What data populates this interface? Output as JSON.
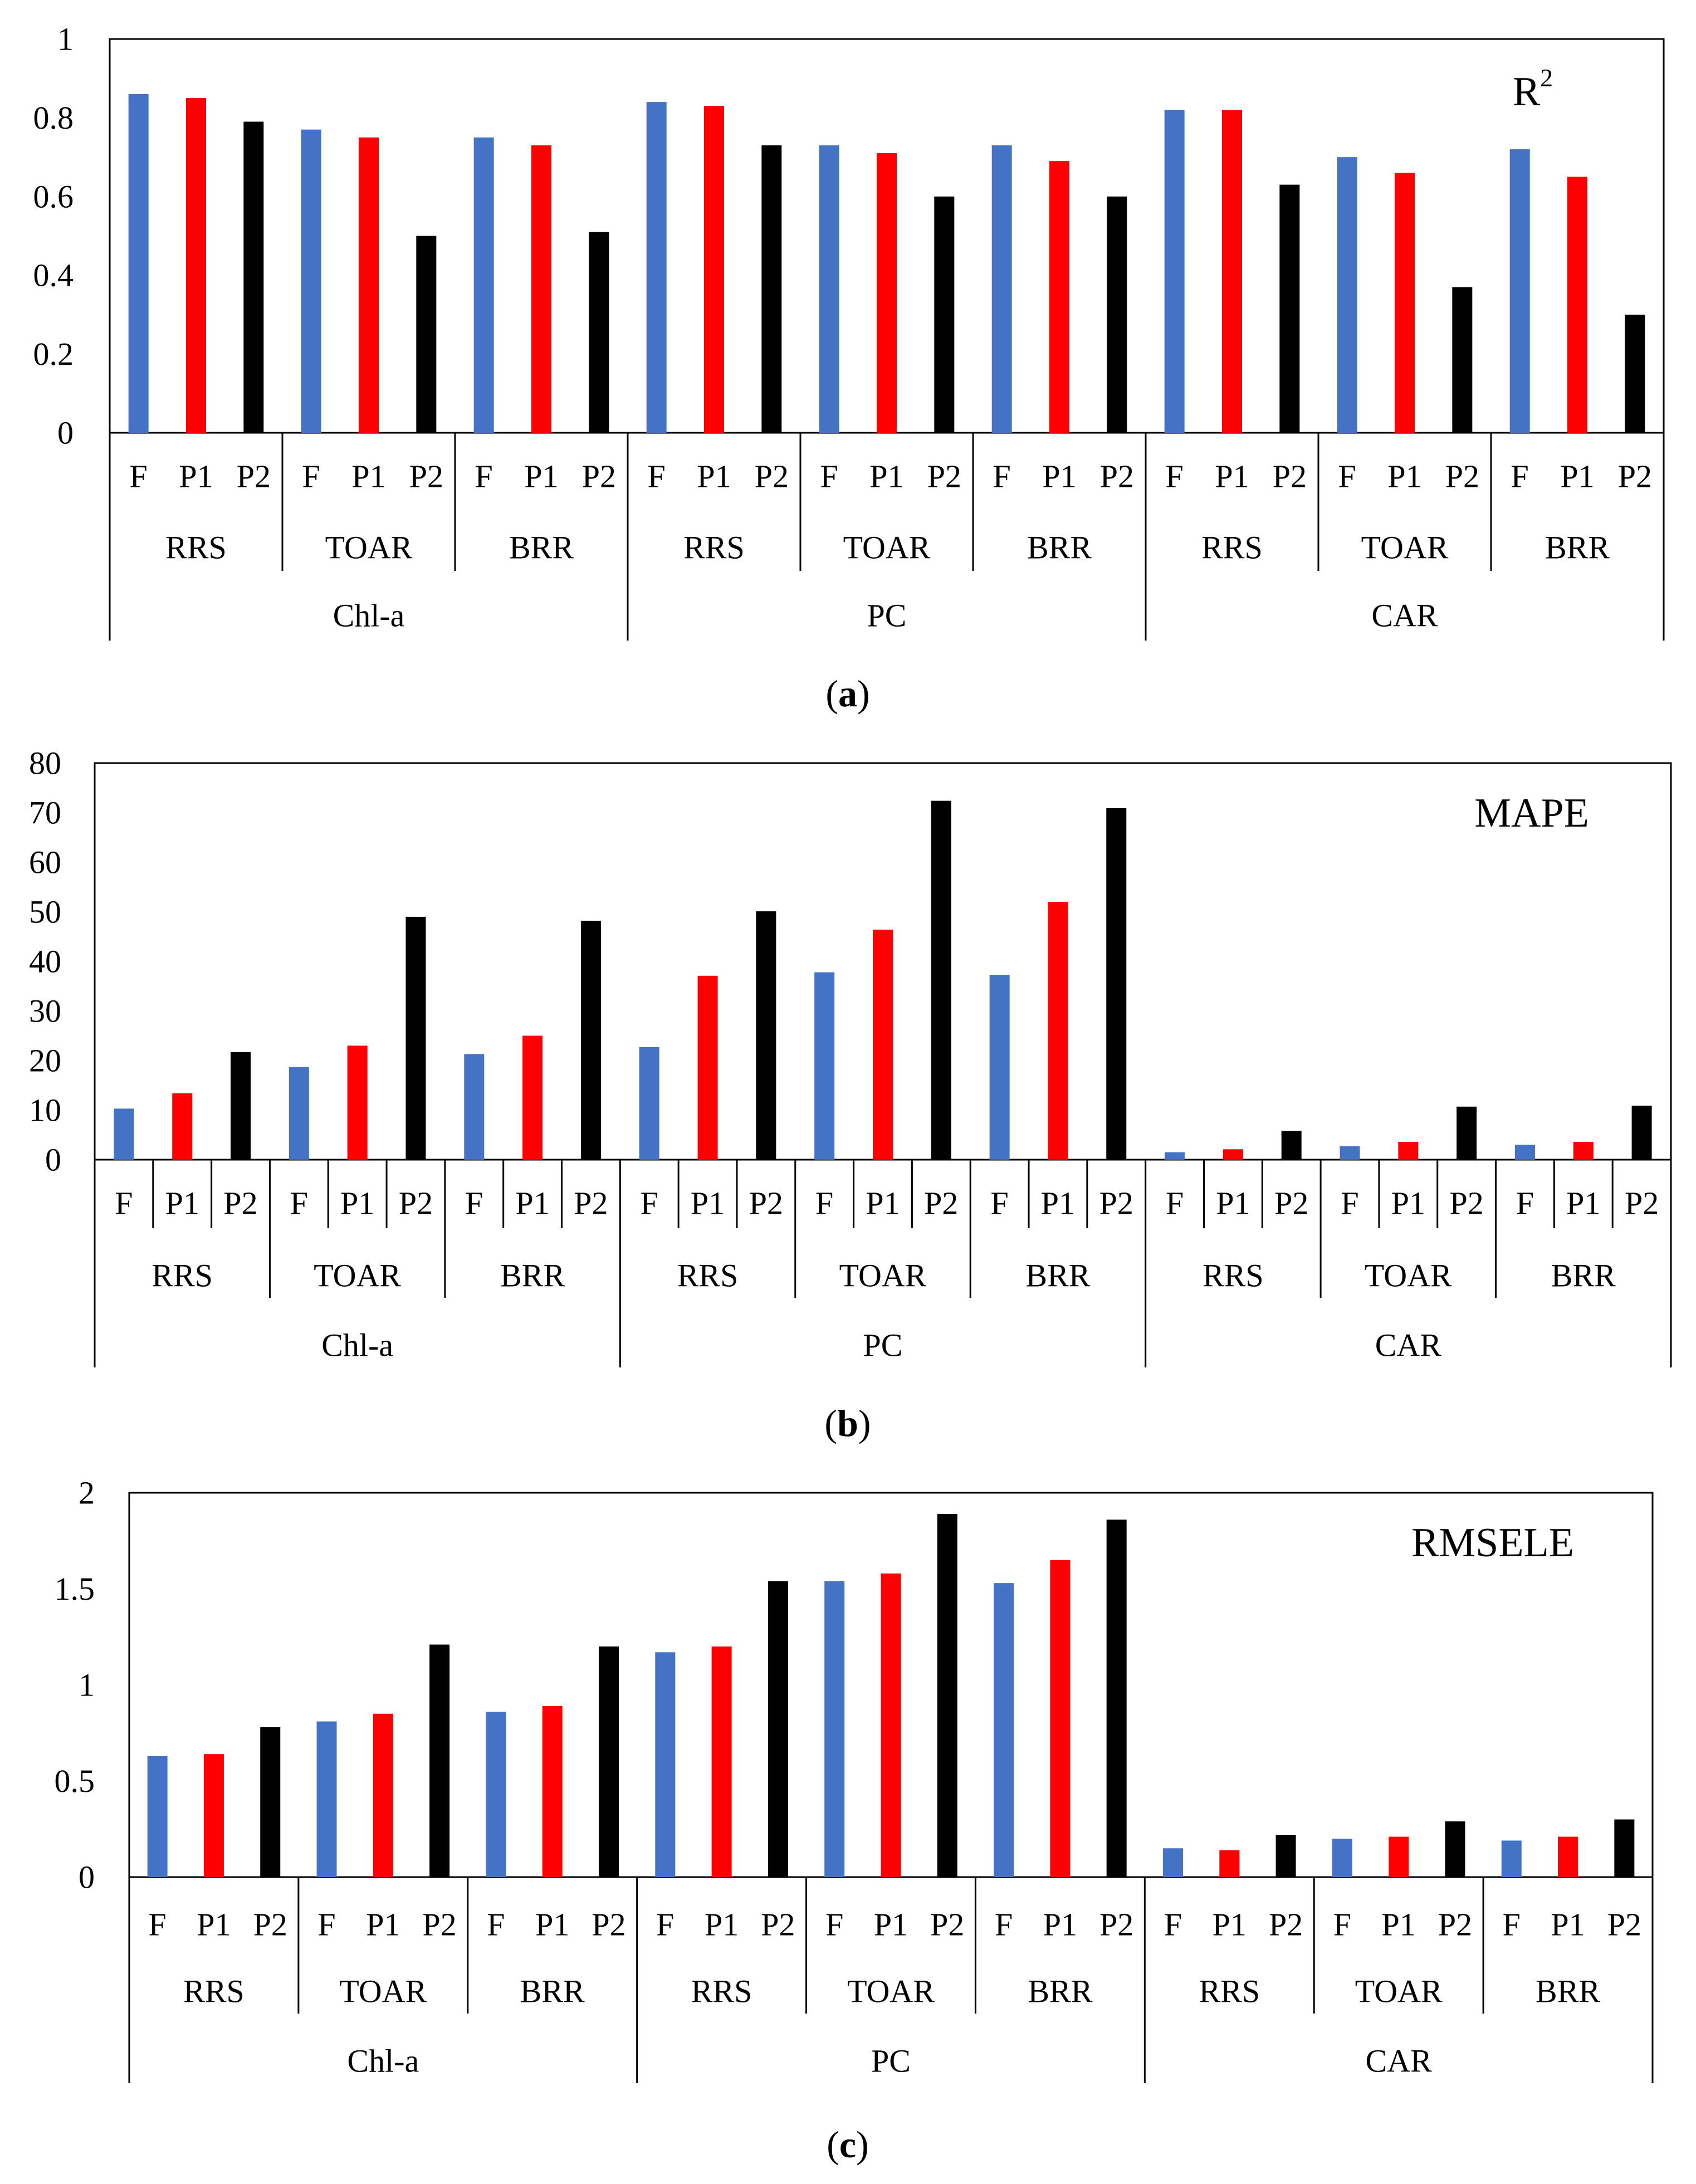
{
  "caption_parts": [
    "(",
    ")"
  ],
  "colors": {
    "F": "#4472C4",
    "P1": "#FF0000",
    "P2": "#000000",
    "axis": "#000000"
  },
  "series": [
    "F",
    "P1",
    "P2"
  ],
  "inputs": [
    "RRS",
    "TOAR",
    "BRR"
  ],
  "pigments": [
    "Chl-a",
    "PC",
    "CAR"
  ],
  "chart_data": [
    {
      "type": "bar",
      "panel": "a",
      "title": "R2",
      "title_main": "R",
      "title_sup": "2",
      "ylim": [
        0,
        1
      ],
      "yticks": [
        0,
        0.2,
        0.4,
        0.6,
        0.8,
        1
      ],
      "ytick_labels": [
        "0",
        "0.2",
        "0.4",
        "0.6",
        "0.8",
        "1"
      ],
      "values": [
        0.86,
        0.85,
        0.79,
        0.77,
        0.75,
        0.5,
        0.75,
        0.73,
        0.51,
        0.84,
        0.83,
        0.73,
        0.73,
        0.71,
        0.6,
        0.73,
        0.69,
        0.6,
        0.82,
        0.82,
        0.63,
        0.7,
        0.66,
        0.37,
        0.72,
        0.65,
        0.3
      ],
      "series_separators": false
    },
    {
      "type": "bar",
      "panel": "b",
      "title": "MAPE",
      "title_main": "MAPE",
      "title_sup": "",
      "ylim": [
        0,
        80
      ],
      "yticks": [
        0,
        10,
        20,
        30,
        40,
        50,
        60,
        70,
        80
      ],
      "ytick_labels": [
        "0",
        "10",
        "20",
        "30",
        "40",
        "50",
        "60",
        "70",
        "80"
      ],
      "values": [
        10.3,
        13.4,
        21.7,
        18.7,
        23.0,
        49.0,
        21.3,
        25.0,
        48.2,
        22.7,
        37.1,
        50.1,
        37.8,
        46.4,
        72.4,
        37.3,
        52.0,
        70.9,
        1.5,
        2.1,
        5.8,
        2.7,
        3.6,
        10.7,
        3.0,
        3.6,
        10.9
      ],
      "series_separators": true
    },
    {
      "type": "bar",
      "panel": "c",
      "title": "RMSELE",
      "title_main": "RMSELE",
      "title_sup": "",
      "ylim": [
        0,
        2
      ],
      "yticks": [
        0,
        0.5,
        1,
        1.5,
        2
      ],
      "ytick_labels": [
        "0",
        "0.5",
        "1",
        "1.5",
        "2"
      ],
      "values": [
        0.63,
        0.64,
        0.78,
        0.81,
        0.85,
        1.21,
        0.86,
        0.89,
        1.2,
        1.17,
        1.2,
        1.54,
        1.54,
        1.58,
        1.89,
        1.53,
        1.65,
        1.86,
        0.15,
        0.14,
        0.22,
        0.2,
        0.21,
        0.29,
        0.19,
        0.21,
        0.3
      ],
      "series_separators": false
    }
  ]
}
